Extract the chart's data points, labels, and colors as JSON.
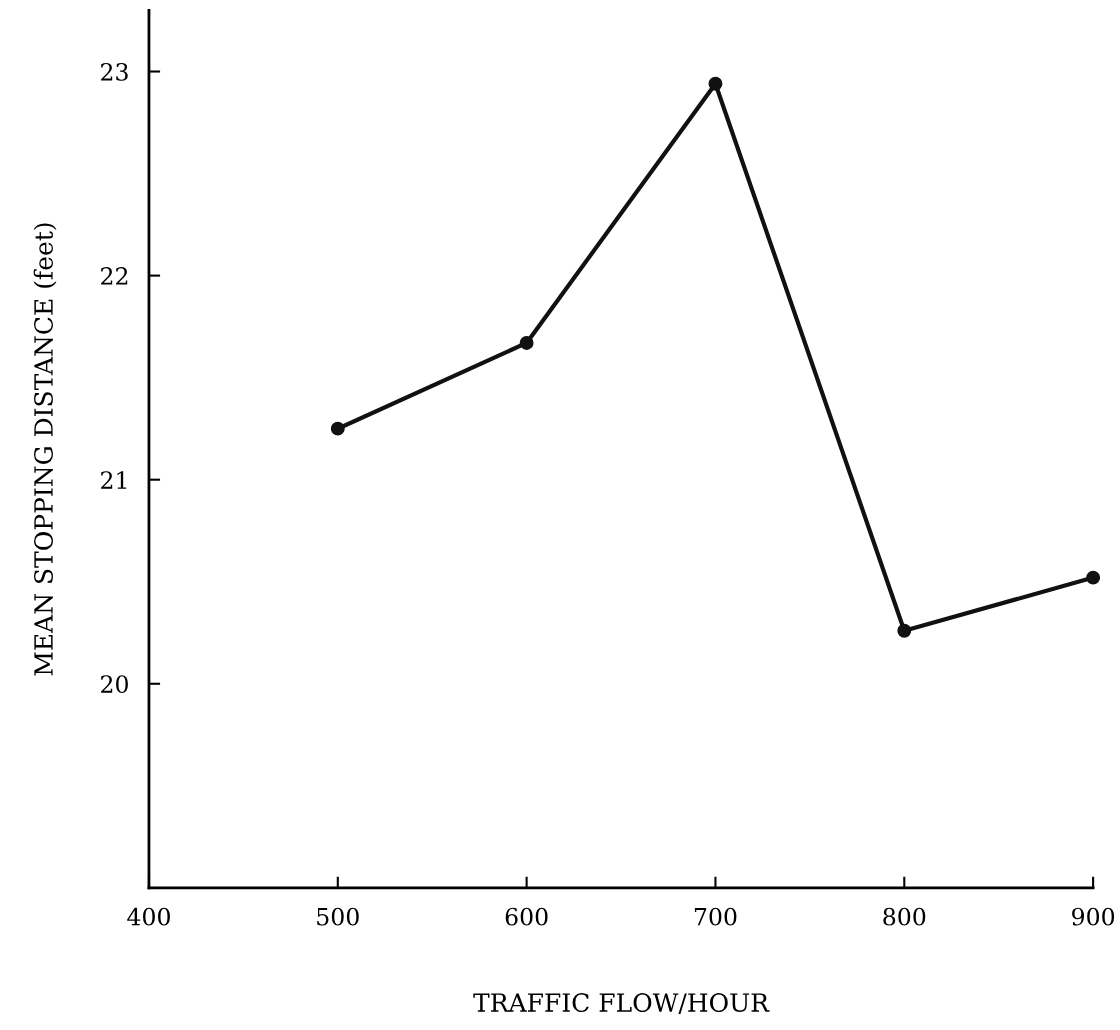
{
  "chart_data": {
    "type": "line",
    "xlabel": "TRAFFIC FLOW/HOUR",
    "ylabel": "MEAN STOPPING DISTANCE (feet)",
    "x": [
      500,
      600,
      700,
      800,
      900
    ],
    "series": [
      {
        "color": "#111111",
        "values": [
          21.25,
          21.67,
          22.94,
          20.26,
          20.52
        ]
      }
    ],
    "xlim": [
      400,
      900
    ],
    "xticks": [
      400,
      500,
      600,
      700,
      800,
      900
    ],
    "ylim": [
      19,
      23.3
    ],
    "yticks": [
      20,
      21,
      22,
      23
    ],
    "marker": "circle",
    "line_style": "solid",
    "grid": false,
    "legend": false
  }
}
